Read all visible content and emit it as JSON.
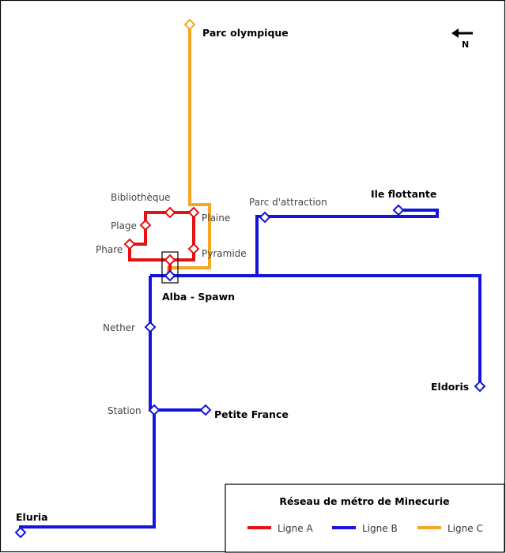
{
  "title": "Réseau de métro de Minecurie",
  "compass": {
    "north_label": "N"
  },
  "lines": {
    "a": {
      "label": "Ligne A",
      "color": "#e81010"
    },
    "b": {
      "label": "Ligne B",
      "color": "#1414dc"
    },
    "c": {
      "label": "Ligne C",
      "color": "#f5a623"
    }
  },
  "stations": {
    "parc_olympique": "Parc olympique",
    "bibliotheque": "Bibliothèque",
    "plaine": "Plaine",
    "plage": "Plage",
    "phare": "Phare",
    "pyramide": "Pyramide",
    "parc_attraction": "Parc d'attraction",
    "ile_flottante": "Ile flottante",
    "alba_spawn": "Alba - Spawn",
    "nether": "Nether",
    "eldoris": "Eldoris",
    "station": "Station",
    "petite_france": "Petite France",
    "eluria": "Eluria"
  }
}
